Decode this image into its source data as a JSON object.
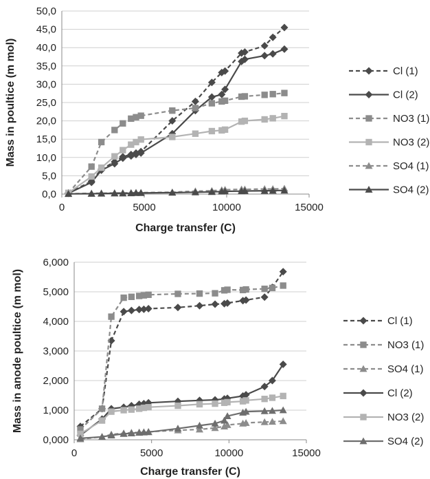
{
  "colors": {
    "dark": "#4a4a4a",
    "mid": "#8c8c8c",
    "light": "#b3b3b3",
    "grid": "#cfcfcf",
    "axis": "#888888"
  },
  "chart_data": [
    {
      "type": "line",
      "xlabel": "Charge transfer (C)",
      "ylabel": "Mass in poultice (m mol)",
      "xlim": [
        0,
        15000
      ],
      "ylim": [
        0,
        50
      ],
      "xticks": [
        "0",
        "5000",
        "10000",
        "15000"
      ],
      "yticks": [
        "0,0",
        "5,0",
        "10,0",
        "15,0",
        "20,0",
        "25,0",
        "30,0",
        "35,0",
        "40,0",
        "45,0",
        "50,0"
      ],
      "grid": "horizontal",
      "legend": "right",
      "series": [
        {
          "name": "Cl (1)",
          "color": "#4a4a4a",
          "dash": "dashed",
          "marker": "diamond",
          "points": [
            [
              400,
              0.3
            ],
            [
              1800,
              3.5
            ],
            [
              2400,
              6.8
            ],
            [
              3200,
              8.8
            ],
            [
              3700,
              10.2
            ],
            [
              4200,
              10.8
            ],
            [
              4500,
              11.2
            ],
            [
              4800,
              11.6
            ],
            [
              6700,
              20
            ],
            [
              8100,
              25.3
            ],
            [
              9100,
              30.5
            ],
            [
              9700,
              33.2
            ],
            [
              9900,
              33.6
            ],
            [
              10900,
              38.5
            ],
            [
              11100,
              38.8
            ],
            [
              12300,
              40.5
            ],
            [
              12800,
              42.8
            ],
            [
              13500,
              45.5
            ]
          ]
        },
        {
          "name": "Cl (2)",
          "color": "#4a4a4a",
          "dash": "solid",
          "marker": "diamond",
          "points": [
            [
              400,
              0.2
            ],
            [
              1800,
              3.2
            ],
            [
              2400,
              6.5
            ],
            [
              3200,
              8.3
            ],
            [
              3700,
              9.8
            ],
            [
              4200,
              10.4
            ],
            [
              4500,
              10.8
            ],
            [
              4800,
              11.2
            ],
            [
              6700,
              16.5
            ],
            [
              8100,
              22.8
            ],
            [
              9100,
              26.5
            ],
            [
              9700,
              27.2
            ],
            [
              9900,
              28.6
            ],
            [
              10900,
              36.2
            ],
            [
              11100,
              36.8
            ],
            [
              12300,
              37.8
            ],
            [
              12800,
              38.3
            ],
            [
              13500,
              39.6
            ]
          ]
        },
        {
          "name": "NO3 (1)",
          "color": "#8c8c8c",
          "dash": "dashed",
          "marker": "square",
          "points": [
            [
              400,
              0.3
            ],
            [
              1800,
              7.5
            ],
            [
              2400,
              14.2
            ],
            [
              3200,
              17.5
            ],
            [
              3700,
              19.3
            ],
            [
              4200,
              20.6
            ],
            [
              4500,
              21.0
            ],
            [
              4800,
              21.4
            ],
            [
              6700,
              22.8
            ],
            [
              8100,
              23.5
            ],
            [
              9100,
              24.8
            ],
            [
              9700,
              25.3
            ],
            [
              9900,
              25.5
            ],
            [
              10900,
              26.6
            ],
            [
              11100,
              26.7
            ],
            [
              12300,
              27.1
            ],
            [
              12800,
              27.3
            ],
            [
              13500,
              27.6
            ]
          ]
        },
        {
          "name": "NO3 (2)",
          "color": "#b3b3b3",
          "dash": "solid",
          "marker": "square",
          "points": [
            [
              400,
              0.3
            ],
            [
              1800,
              4.8
            ],
            [
              2400,
              7.2
            ],
            [
              3200,
              10.3
            ],
            [
              3700,
              12.0
            ],
            [
              4200,
              13.5
            ],
            [
              4500,
              14.2
            ],
            [
              4800,
              14.9
            ],
            [
              6700,
              15.6
            ],
            [
              8100,
              16.5
            ],
            [
              9100,
              17.2
            ],
            [
              9700,
              17.4
            ],
            [
              9900,
              17.6
            ],
            [
              10900,
              19.8
            ],
            [
              11100,
              20.0
            ],
            [
              12300,
              20.4
            ],
            [
              12800,
              20.7
            ],
            [
              13500,
              21.3
            ]
          ]
        },
        {
          "name": "SO4 (1)",
          "color": "#8c8c8c",
          "dash": "dashed",
          "marker": "triangle",
          "points": [
            [
              400,
              0.1
            ],
            [
              1800,
              0.2
            ],
            [
              2400,
              0.25
            ],
            [
              3200,
              0.3
            ],
            [
              3700,
              0.3
            ],
            [
              4200,
              0.35
            ],
            [
              4500,
              0.4
            ],
            [
              4800,
              0.4
            ],
            [
              6700,
              0.5
            ],
            [
              8100,
              0.8
            ],
            [
              9100,
              0.9
            ],
            [
              9700,
              1.1
            ],
            [
              9900,
              1.2
            ],
            [
              10900,
              1.3
            ],
            [
              11100,
              1.3
            ],
            [
              12300,
              1.4
            ],
            [
              12800,
              1.4
            ],
            [
              13500,
              1.5
            ]
          ]
        },
        {
          "name": "SO4 (2)",
          "color": "#4a4a4a",
          "dash": "solid",
          "marker": "triangle",
          "points": [
            [
              400,
              0.05
            ],
            [
              1800,
              0.1
            ],
            [
              2400,
              0.15
            ],
            [
              3200,
              0.2
            ],
            [
              3700,
              0.2
            ],
            [
              4200,
              0.25
            ],
            [
              4500,
              0.3
            ],
            [
              4800,
              0.3
            ],
            [
              6700,
              0.4
            ],
            [
              8100,
              0.5
            ],
            [
              9100,
              0.6
            ],
            [
              9700,
              0.7
            ],
            [
              9900,
              0.75
            ],
            [
              10900,
              0.8
            ],
            [
              11100,
              0.85
            ],
            [
              12300,
              0.9
            ],
            [
              12800,
              0.95
            ],
            [
              13500,
              1.0
            ]
          ]
        }
      ]
    },
    {
      "type": "line",
      "xlabel": "Charge transfer (C)",
      "ylabel": "Mass in anode poultice (m mol)",
      "xlim": [
        0,
        15000
      ],
      "ylim": [
        0,
        6
      ],
      "xticks": [
        "0",
        "5000",
        "10000",
        "15000"
      ],
      "yticks": [
        "0,000",
        "1,000",
        "2,000",
        "3,000",
        "4,000",
        "5,000",
        "6,000"
      ],
      "grid": "horizontal",
      "legend": "right",
      "series": [
        {
          "name": "Cl (1)",
          "color": "#4a4a4a",
          "dash": "dashed",
          "marker": "diamond",
          "points": [
            [
              400,
              0.45
            ],
            [
              1800,
              1.05
            ],
            [
              2400,
              3.35
            ],
            [
              3200,
              4.33
            ],
            [
              3700,
              4.37
            ],
            [
              4200,
              4.4
            ],
            [
              4500,
              4.41
            ],
            [
              4800,
              4.43
            ],
            [
              6700,
              4.47
            ],
            [
              8100,
              4.53
            ],
            [
              9100,
              4.58
            ],
            [
              9700,
              4.6
            ],
            [
              9900,
              4.62
            ],
            [
              10900,
              4.7
            ],
            [
              11100,
              4.72
            ],
            [
              12300,
              4.82
            ],
            [
              12800,
              5.15
            ],
            [
              13500,
              5.68
            ]
          ]
        },
        {
          "name": "NO3 (1)",
          "color": "#8c8c8c",
          "dash": "dashed",
          "marker": "square",
          "points": [
            [
              400,
              0.35
            ],
            [
              1800,
              1.05
            ],
            [
              2400,
              4.16
            ],
            [
              3200,
              4.8
            ],
            [
              3700,
              4.83
            ],
            [
              4200,
              4.86
            ],
            [
              4500,
              4.88
            ],
            [
              4800,
              4.9
            ],
            [
              6700,
              4.93
            ],
            [
              8100,
              4.94
            ],
            [
              9100,
              4.95
            ],
            [
              9700,
              5.05
            ],
            [
              9900,
              5.07
            ],
            [
              10900,
              5.06
            ],
            [
              11100,
              5.08
            ],
            [
              12300,
              5.1
            ],
            [
              12800,
              5.13
            ],
            [
              13500,
              5.21
            ]
          ]
        },
        {
          "name": "SO4 (1)",
          "color": "#8c8c8c",
          "dash": "dashed",
          "marker": "triangle",
          "points": [
            [
              400,
              0.02
            ],
            [
              1800,
              0.1
            ],
            [
              2400,
              0.18
            ],
            [
              3200,
              0.22
            ],
            [
              3700,
              0.24
            ],
            [
              4200,
              0.25
            ],
            [
              4500,
              0.26
            ],
            [
              4800,
              0.27
            ],
            [
              6700,
              0.32
            ],
            [
              8100,
              0.35
            ],
            [
              9100,
              0.4
            ],
            [
              9700,
              0.45
            ],
            [
              9900,
              0.5
            ],
            [
              10900,
              0.55
            ],
            [
              11100,
              0.57
            ],
            [
              12300,
              0.6
            ],
            [
              12800,
              0.61
            ],
            [
              13500,
              0.63
            ]
          ]
        },
        {
          "name": "Cl (2)",
          "color": "#4a4a4a",
          "dash": "solid",
          "marker": "diamond",
          "points": [
            [
              400,
              0.15
            ],
            [
              1800,
              0.7
            ],
            [
              2400,
              1.05
            ],
            [
              3200,
              1.1
            ],
            [
              3700,
              1.15
            ],
            [
              4200,
              1.2
            ],
            [
              4500,
              1.22
            ],
            [
              4800,
              1.25
            ],
            [
              6700,
              1.3
            ],
            [
              8100,
              1.33
            ],
            [
              9100,
              1.35
            ],
            [
              9700,
              1.38
            ],
            [
              9900,
              1.4
            ],
            [
              10900,
              1.48
            ],
            [
              11100,
              1.52
            ],
            [
              12300,
              1.8
            ],
            [
              12800,
              2.0
            ],
            [
              13500,
              2.55
            ]
          ]
        },
        {
          "name": "NO3 (2)",
          "color": "#b3b3b3",
          "dash": "solid",
          "marker": "square",
          "points": [
            [
              400,
              0.2
            ],
            [
              1800,
              0.65
            ],
            [
              2400,
              0.95
            ],
            [
              3200,
              1.0
            ],
            [
              3700,
              1.02
            ],
            [
              4200,
              1.05
            ],
            [
              4500,
              1.08
            ],
            [
              4800,
              1.1
            ],
            [
              6700,
              1.15
            ],
            [
              8100,
              1.2
            ],
            [
              9100,
              1.22
            ],
            [
              9700,
              1.25
            ],
            [
              9900,
              1.27
            ],
            [
              10900,
              1.3
            ],
            [
              11100,
              1.33
            ],
            [
              12300,
              1.38
            ],
            [
              12800,
              1.42
            ],
            [
              13500,
              1.48
            ]
          ]
        },
        {
          "name": "SO4 (2)",
          "color": "#6e6e6e",
          "dash": "solid",
          "marker": "triangle",
          "points": [
            [
              400,
              0.05
            ],
            [
              1800,
              0.1
            ],
            [
              2400,
              0.15
            ],
            [
              3200,
              0.2
            ],
            [
              3700,
              0.22
            ],
            [
              4200,
              0.24
            ],
            [
              4500,
              0.25
            ],
            [
              4800,
              0.26
            ],
            [
              6700,
              0.38
            ],
            [
              8100,
              0.48
            ],
            [
              9100,
              0.55
            ],
            [
              9700,
              0.65
            ],
            [
              9900,
              0.8
            ],
            [
              10900,
              0.92
            ],
            [
              11100,
              0.95
            ],
            [
              12300,
              0.97
            ],
            [
              12800,
              0.98
            ],
            [
              13500,
              1.0
            ]
          ]
        }
      ]
    }
  ]
}
